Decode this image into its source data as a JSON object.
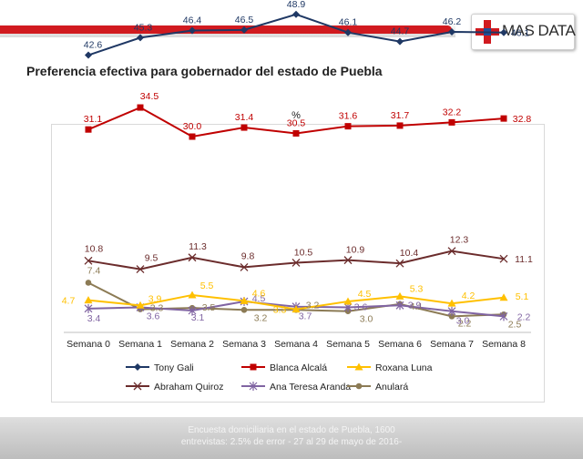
{
  "header": {
    "logo_text": "MAS DATA",
    "title": "Preferencia efectiva para gobernador del estado de Puebla"
  },
  "footer": {
    "line1": "Encuesta domiciliaria en el estado de Puebla, 1600",
    "line2": "entrevistas: 2.5% de error - 27 al 29 de mayo de 2016-"
  },
  "colors": {
    "brand_red": "#d11a1f",
    "brand_blue": "#1f4e9a"
  },
  "chart_data": {
    "type": "line",
    "title": "%",
    "xlabel": "",
    "ylabel": "",
    "grid": false,
    "legend_position": "bottom",
    "categories": [
      "Semana 0",
      "Semana 1",
      "Semana 2",
      "Semana 3",
      "Semana 4",
      "Semana 5",
      "Semana 6",
      "Semana 7",
      "Semana 8"
    ],
    "series": [
      {
        "name": "Tony Gali",
        "color": "#1f3864",
        "marker": "diamond",
        "values": [
          42.6,
          45.3,
          46.4,
          46.5,
          48.9,
          46.1,
          44.7,
          46.2,
          46.1
        ]
      },
      {
        "name": "Blanca Alcalá",
        "color": "#c00000",
        "marker": "square",
        "values": [
          31.1,
          34.5,
          30.0,
          31.4,
          30.5,
          31.6,
          31.7,
          32.2,
          32.8
        ]
      },
      {
        "name": "Roxana Luna",
        "color": "#ffc000",
        "marker": "triangle",
        "values": [
          4.7,
          3.9,
          5.5,
          4.6,
          3.3,
          4.5,
          5.3,
          4.2,
          5.1
        ]
      },
      {
        "name": "Abraham Quiroz",
        "color": "#6b2c2c",
        "marker": "x",
        "values": [
          10.8,
          9.5,
          11.3,
          9.8,
          10.5,
          10.9,
          10.4,
          12.3,
          11.1
        ]
      },
      {
        "name": "Ana Teresa Aranda",
        "color": "#8064a2",
        "marker": "star",
        "values": [
          3.4,
          3.6,
          3.1,
          4.5,
          3.7,
          3.6,
          3.9,
          3.0,
          2.2
        ]
      },
      {
        "name": "Anulará",
        "color": "#8c7b55",
        "marker": "circle",
        "values": [
          7.4,
          3.3,
          3.5,
          3.2,
          3.2,
          3.0,
          4.1,
          2.2,
          2.5
        ]
      }
    ]
  }
}
